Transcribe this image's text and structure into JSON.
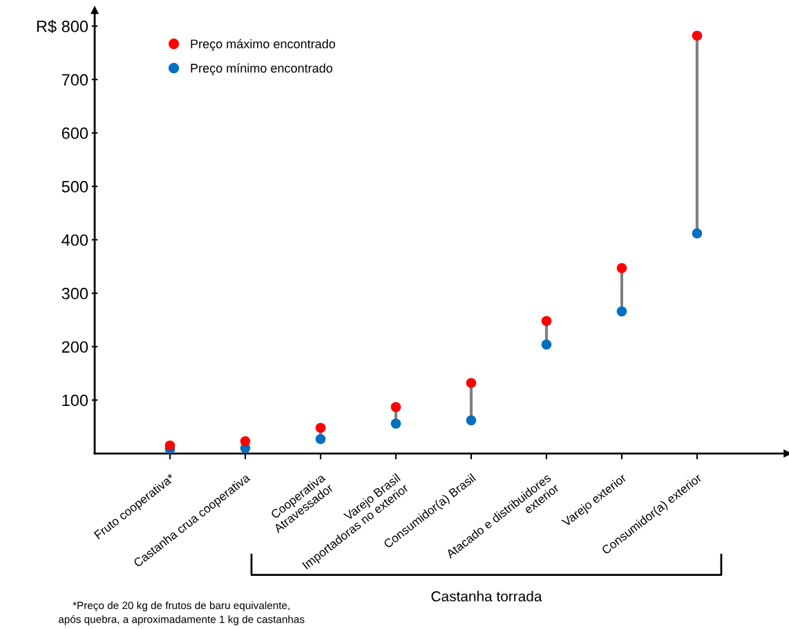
{
  "chart_data": {
    "type": "scatter",
    "categories": [
      "Fruto cooperativa*",
      "Castanha crua cooperativa",
      "Cooperativa\nAtravessador",
      "Varejo Brasil\nImportadoras no exterior",
      "Consumidor(a) Brasil",
      "Atacado e distribuidores\nexterior",
      "Varejo exterior",
      "Consumidor(a) exterior"
    ],
    "series": [
      {
        "name": "Preço máximo encontrado",
        "color": "#ff0000",
        "values": [
          15,
          23,
          48,
          87,
          132,
          248,
          347,
          782
        ]
      },
      {
        "name": "Preço mínimo encontrado",
        "color": "#0070c0",
        "values": [
          8,
          10,
          27,
          56,
          62,
          204,
          266,
          412
        ]
      }
    ],
    "ylim": [
      0,
      830
    ],
    "yticks": [
      100,
      200,
      300,
      400,
      500,
      600,
      700,
      {
        "value": 800,
        "label": "R$ 800"
      }
    ],
    "grid": false,
    "legend": "top left",
    "marker": "circle",
    "annotations": [
      "Castanha torrada",
      "*Preço de 20 kg de frutos de baru equivalente,\napós quebra, a aproximadamente 1 kg de castanhas"
    ]
  }
}
